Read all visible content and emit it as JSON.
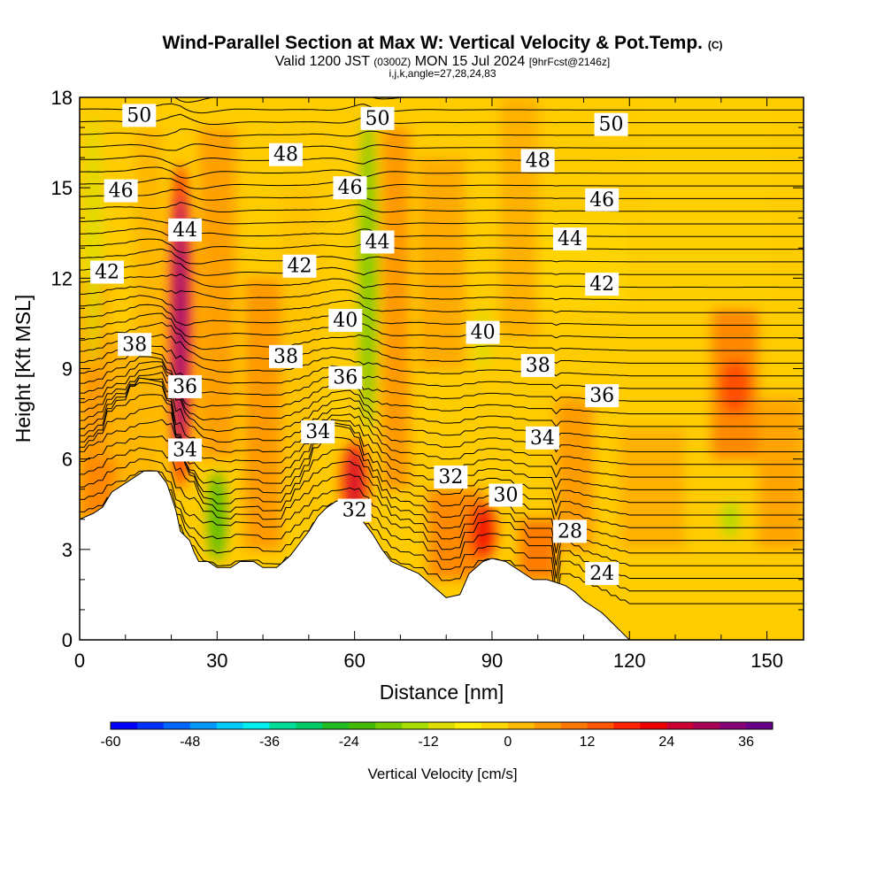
{
  "title": {
    "main": "Wind-Parallel Section at Max W: Vertical Velocity & Pot.Temp.",
    "copyright": "(C)",
    "valid_prefix": "Valid 1200 JST",
    "valid_utc": "(0300Z)",
    "valid_date": "MON 15 Jul 2024",
    "forecast": "[9hrFcst@2146z]",
    "indices": "i,j,k,angle=27,28,24,83"
  },
  "chart_data": {
    "type": "heatmap",
    "xlabel": "Distance [nm]",
    "ylabel": "Height [Kft MSL]",
    "xlim": [
      0,
      158
    ],
    "ylim": [
      0,
      18
    ],
    "x_ticks": [
      "0",
      "30",
      "60",
      "90",
      "120",
      "150"
    ],
    "y_ticks": [
      "0",
      "3",
      "6",
      "9",
      "12",
      "15",
      "18"
    ],
    "colorbar": {
      "title": "Vertical Velocity [cm/s]",
      "ticks": [
        "-60",
        "-48",
        "-36",
        "-24",
        "-12",
        "0",
        "12",
        "24",
        "36"
      ],
      "range": [
        -60,
        40
      ],
      "colors": [
        "#0000ff",
        "#0033ff",
        "#0066ff",
        "#0099ff",
        "#00ccff",
        "#00eeee",
        "#00dd99",
        "#00cc66",
        "#22bb22",
        "#44bb00",
        "#77cc00",
        "#aadd00",
        "#dddd00",
        "#ffee00",
        "#ffd700",
        "#ffbb00",
        "#ff9900",
        "#ff7700",
        "#ff5500",
        "#ff2200",
        "#ee0000",
        "#cc0033",
        "#aa0055",
        "#880077",
        "#660088"
      ]
    },
    "terrain_kft": [
      [
        0,
        4
      ],
      [
        3,
        4.2
      ],
      [
        5,
        4.4
      ],
      [
        7,
        4.9
      ],
      [
        9,
        5.1
      ],
      [
        12,
        5.4
      ],
      [
        14,
        5.6
      ],
      [
        17,
        5.6
      ],
      [
        19,
        5.2
      ],
      [
        21,
        4.3
      ],
      [
        22,
        3.6
      ],
      [
        24,
        3.3
      ],
      [
        25,
        2.9
      ],
      [
        26,
        2.6
      ],
      [
        28,
        2.6
      ],
      [
        30,
        2.4
      ],
      [
        33,
        2.4
      ],
      [
        35,
        2.6
      ],
      [
        38,
        2.6
      ],
      [
        40,
        2.4
      ],
      [
        43,
        2.4
      ],
      [
        46,
        2.8
      ],
      [
        48,
        3.2
      ],
      [
        50,
        3.6
      ],
      [
        52,
        4.1
      ],
      [
        54,
        4.4
      ],
      [
        56,
        4.6
      ],
      [
        58,
        4.6
      ],
      [
        60,
        4.4
      ],
      [
        62,
        3.9
      ],
      [
        64,
        3.5
      ],
      [
        66,
        3.0
      ],
      [
        68,
        2.6
      ],
      [
        71,
        2.4
      ],
      [
        74,
        2.2
      ],
      [
        77,
        1.8
      ],
      [
        80,
        1.4
      ],
      [
        83,
        1.5
      ],
      [
        85,
        2.2
      ],
      [
        88,
        2.6
      ],
      [
        90,
        2.7
      ],
      [
        93,
        2.6
      ],
      [
        96,
        2.3
      ],
      [
        99,
        2.0
      ],
      [
        102,
        2.0
      ],
      [
        106,
        1.8
      ],
      [
        108,
        1.6
      ],
      [
        110,
        1.3
      ],
      [
        112,
        1.1
      ],
      [
        114,
        0.9
      ],
      [
        116,
        0.6
      ],
      [
        118,
        0.3
      ],
      [
        120,
        0
      ],
      [
        158,
        0
      ]
    ],
    "isentropes_K_offset": [
      24,
      28,
      30,
      32,
      34,
      36,
      38,
      40,
      42,
      44,
      46,
      48,
      50
    ],
    "contour_labels": [
      {
        "text": "50",
        "x": 13,
        "y": 17.4
      },
      {
        "text": "50",
        "x": 65,
        "y": 17.3
      },
      {
        "text": "50",
        "x": 116,
        "y": 17.1
      },
      {
        "text": "48",
        "x": 45,
        "y": 16.1
      },
      {
        "text": "48",
        "x": 100,
        "y": 15.9
      },
      {
        "text": "46",
        "x": 9,
        "y": 14.9
      },
      {
        "text": "46",
        "x": 59,
        "y": 15.0
      },
      {
        "text": "46",
        "x": 114,
        "y": 14.6
      },
      {
        "text": "44",
        "x": 23,
        "y": 13.6
      },
      {
        "text": "44",
        "x": 65,
        "y": 13.2
      },
      {
        "text": "44",
        "x": 107,
        "y": 13.3
      },
      {
        "text": "42",
        "x": 6,
        "y": 12.2
      },
      {
        "text": "42",
        "x": 48,
        "y": 12.4
      },
      {
        "text": "42",
        "x": 114,
        "y": 11.8
      },
      {
        "text": "40",
        "x": 58,
        "y": 10.6
      },
      {
        "text": "40",
        "x": 88,
        "y": 10.2
      },
      {
        "text": "38",
        "x": 12,
        "y": 9.8
      },
      {
        "text": "38",
        "x": 45,
        "y": 9.4
      },
      {
        "text": "38",
        "x": 100,
        "y": 9.1
      },
      {
        "text": "36",
        "x": 23,
        "y": 8.4
      },
      {
        "text": "36",
        "x": 58,
        "y": 8.7
      },
      {
        "text": "36",
        "x": 114,
        "y": 8.1
      },
      {
        "text": "34",
        "x": 52,
        "y": 6.9
      },
      {
        "text": "34",
        "x": 101,
        "y": 6.7
      },
      {
        "text": "34",
        "x": 23,
        "y": 6.3
      },
      {
        "text": "32",
        "x": 81,
        "y": 5.4
      },
      {
        "text": "32",
        "x": 60,
        "y": 4.3
      },
      {
        "text": "30",
        "x": 93,
        "y": 4.8
      },
      {
        "text": "28",
        "x": 107,
        "y": 3.6
      },
      {
        "text": "24",
        "x": 114,
        "y": 2.2
      }
    ],
    "updraft_cores": [
      {
        "x": 22,
        "z0": 5.0,
        "z1": 15.8,
        "w": 34
      },
      {
        "x": 60,
        "z0": 3.8,
        "z1": 6.6,
        "w": 26
      },
      {
        "x": 88,
        "z0": 2.6,
        "z1": 4.6,
        "w": 22
      },
      {
        "x": 143,
        "z0": 7.5,
        "z1": 9.3,
        "w": 14
      }
    ],
    "downdraft_bands": [
      {
        "x": 3,
        "z0": 9,
        "z1": 17.5,
        "w": -10
      },
      {
        "x": 30,
        "z0": 2.6,
        "z1": 5.6,
        "w": -24
      },
      {
        "x": 63,
        "z0": 7,
        "z1": 17.5,
        "w": -18
      },
      {
        "x": 88,
        "z0": 9,
        "z1": 11,
        "w": -12
      },
      {
        "x": 142,
        "z0": 3.4,
        "z1": 4.6,
        "w": -14
      }
    ]
  }
}
